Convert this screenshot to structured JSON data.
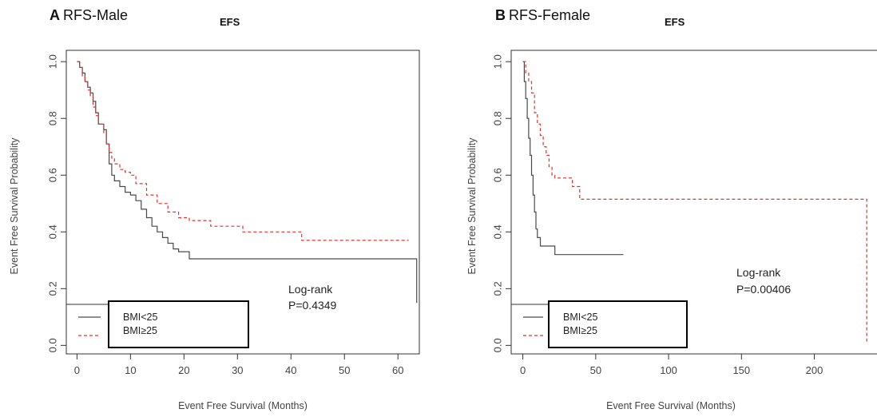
{
  "figure": {
    "colors": {
      "bmi_lt25": "#4a4a4a",
      "bmi_ge25": "#e8302a"
    }
  },
  "chart_data": [
    {
      "type": "line",
      "panel_letter": "A",
      "title": "RFS-Male",
      "subtitle": "EFS",
      "xlabel": "Event Free Survival (Months)",
      "ylabel": "Event Free Survival Probability",
      "xlim": [
        -2,
        64
      ],
      "ylim": [
        -0.03,
        1.04
      ],
      "xticks": [
        0,
        10,
        20,
        30,
        40,
        50,
        60
      ],
      "yticks": [
        0.0,
        0.2,
        0.4,
        0.6,
        0.8,
        1.0
      ],
      "ytick_labels": [
        "0.0",
        "0.2",
        "0.4",
        "0.6",
        "0.8",
        "1.0"
      ],
      "grid": false,
      "step": true,
      "annotation": [
        "Log-rank",
        "P=0.4349"
      ],
      "legend": {
        "placement": "bottom-left",
        "entries": [
          "BMI<25",
          "BMI≥25"
        ]
      },
      "series": [
        {
          "name": "BMI<25",
          "color": "#4a4a4a",
          "dash": "solid",
          "x": [
            0,
            0.5,
            1,
            1.5,
            2,
            2.5,
            3,
            3.5,
            4,
            5,
            5.5,
            6,
            6.5,
            7,
            8,
            9,
            10,
            11,
            12,
            13,
            14,
            15,
            16,
            17,
            18,
            19,
            20,
            21,
            63.5
          ],
          "y": [
            1.0,
            0.98,
            0.96,
            0.93,
            0.91,
            0.89,
            0.86,
            0.82,
            0.78,
            0.76,
            0.71,
            0.64,
            0.6,
            0.58,
            0.56,
            0.54,
            0.53,
            0.51,
            0.48,
            0.45,
            0.42,
            0.4,
            0.38,
            0.36,
            0.34,
            0.33,
            0.33,
            0.305,
            0.15
          ]
        },
        {
          "name": "BMI≥25",
          "color": "#e8302a",
          "dash": "dashed",
          "x": [
            0,
            0.5,
            1,
            1.5,
            2,
            2.5,
            3,
            3.5,
            4,
            5,
            5.5,
            6,
            6.5,
            7,
            8,
            9,
            10,
            11,
            13,
            15,
            17,
            19,
            21,
            25,
            31,
            42,
            62
          ],
          "y": [
            1.0,
            0.98,
            0.95,
            0.93,
            0.9,
            0.88,
            0.84,
            0.81,
            0.78,
            0.75,
            0.71,
            0.68,
            0.66,
            0.64,
            0.62,
            0.61,
            0.6,
            0.57,
            0.53,
            0.5,
            0.47,
            0.45,
            0.44,
            0.42,
            0.4,
            0.37,
            0.37
          ]
        }
      ]
    },
    {
      "type": "line",
      "panel_letter": "B",
      "title": "RFS-Female",
      "subtitle": "EFS",
      "xlabel": "Event Free Survival (Months)",
      "ylabel": "Event Free Survival Probability",
      "xlim": [
        -8,
        243
      ],
      "ylim": [
        -0.03,
        1.04
      ],
      "xticks": [
        0,
        50,
        100,
        150,
        200
      ],
      "yticks": [
        0.0,
        0.2,
        0.4,
        0.6,
        0.8,
        1.0
      ],
      "ytick_labels": [
        "0.0",
        "0.2",
        "0.4",
        "0.6",
        "0.8",
        "1.0"
      ],
      "grid": false,
      "step": true,
      "annotation": [
        "Log-rank",
        "P=0.00406"
      ],
      "legend": {
        "placement": "bottom-left",
        "entries": [
          "BMI<25",
          "BMI≥25"
        ]
      },
      "series": [
        {
          "name": "BMI<25",
          "color": "#4a4a4a",
          "dash": "solid",
          "x": [
            0,
            1,
            2,
            3,
            4,
            5,
            6,
            7,
            8,
            9,
            10,
            12,
            22,
            69
          ],
          "y": [
            1.0,
            0.93,
            0.87,
            0.8,
            0.73,
            0.67,
            0.6,
            0.53,
            0.47,
            0.41,
            0.38,
            0.35,
            0.32,
            0.32
          ]
        },
        {
          "name": "BMI≥25",
          "color": "#e8302a",
          "dash": "dashed",
          "x": [
            0,
            2,
            4,
            6,
            8,
            10,
            12,
            14,
            16,
            18,
            20,
            22,
            30,
            34,
            39,
            236
          ],
          "y": [
            1.0,
            0.96,
            0.93,
            0.89,
            0.82,
            0.78,
            0.74,
            0.7,
            0.67,
            0.63,
            0.6,
            0.59,
            0.59,
            0.56,
            0.515,
            0.01
          ]
        }
      ]
    }
  ]
}
